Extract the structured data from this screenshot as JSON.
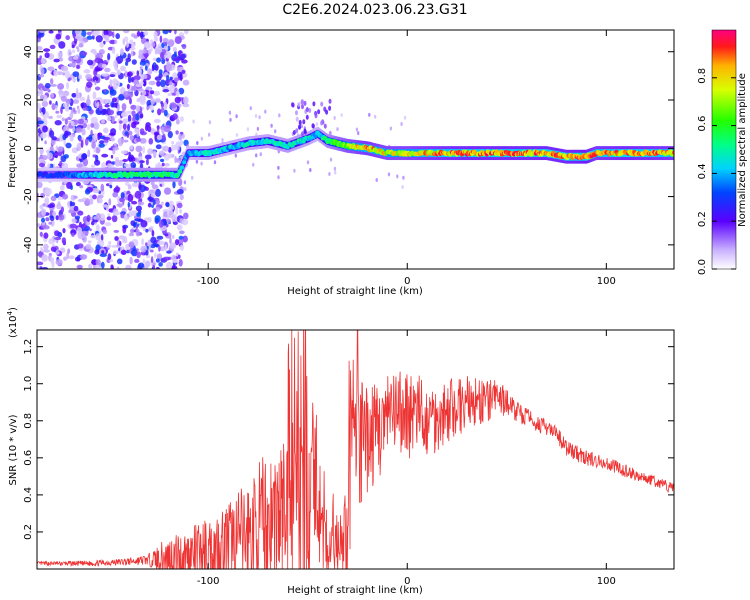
{
  "title": "C2E6.2024.023.06.23.G31",
  "chart_data": [
    {
      "type": "heatmap",
      "xlabel": "Height of straight line (km)",
      "ylabel": "Frequency (Hz)",
      "xlim": [
        -186,
        134
      ],
      "ylim": [
        -50,
        49
      ],
      "xticks": [
        -100,
        0,
        100
      ],
      "yticks": [
        -40,
        -20,
        0,
        20,
        40
      ],
      "colorbar": {
        "label": "Normalized spectral amplitude",
        "range": [
          0,
          1
        ],
        "ticks": [
          "0.0",
          "0.2",
          "0.4",
          "0.6",
          "0.8"
        ]
      },
      "ridge": {
        "x": [
          -186,
          -170,
          -150,
          -130,
          -115,
          -110,
          -100,
          -90,
          -80,
          -70,
          -60,
          -50,
          -45,
          -40,
          -30,
          -20,
          -10,
          0,
          10,
          30,
          50,
          70,
          80,
          90,
          95,
          110,
          134
        ],
        "y": [
          -11,
          -11,
          -11,
          -11,
          -11,
          -2,
          -2,
          0,
          2,
          3,
          1,
          4,
          6,
          3,
          1,
          0,
          -2,
          -2,
          -2,
          -2,
          -2,
          -2,
          -3.5,
          -3.5,
          -2,
          -2,
          -2
        ],
        "amp": [
          0.3,
          0.35,
          0.55,
          0.6,
          0.55,
          0.4,
          0.5,
          0.45,
          0.5,
          0.5,
          0.55,
          0.5,
          0.45,
          0.6,
          0.8,
          0.9,
          0.85,
          0.85,
          0.9,
          0.95,
          0.95,
          0.95,
          0.95,
          1.0,
          0.9,
          0.95,
          0.9
        ]
      }
    },
    {
      "type": "line",
      "xlabel": "Height of straight line (km)",
      "ylabel": "SNR (10 * v/v)",
      "multiplier": "(x10",
      "multiplier_exp": "4",
      "xlim": [
        -186,
        134
      ],
      "ylim": [
        0,
        12900
      ],
      "xticks": [
        -100,
        0,
        100
      ],
      "yticks": [
        2000,
        4000,
        6000,
        8000,
        10000,
        12000
      ],
      "ytick_labels": [
        "0.2",
        "0.4",
        "0.6",
        "0.8",
        "1.0",
        "1.2"
      ],
      "series": [
        {
          "color": "#ee3333",
          "x": [
            -186,
            -160,
            -140,
            -130,
            -120,
            -110,
            -100,
            -90,
            -80,
            -70,
            -60,
            -55,
            -50,
            -45,
            -40,
            -35,
            -30,
            -28,
            -25,
            -20,
            -10,
            0,
            10,
            20,
            30,
            40,
            45,
            50,
            55,
            60,
            70,
            75,
            80,
            90,
            100,
            110,
            120,
            130,
            134
          ],
          "y": [
            300,
            300,
            400,
            500,
            600,
            700,
            1000,
            1300,
            1800,
            2500,
            3000,
            3200,
            3500,
            2000,
            1000,
            900,
            1500,
            7000,
            6500,
            7000,
            8000,
            8500,
            8000,
            8500,
            9000,
            9000,
            9300,
            9000,
            8500,
            8200,
            7600,
            7300,
            6500,
            6000,
            5700,
            5300,
            4900,
            4500,
            4300
          ],
          "noise": [
            100,
            150,
            200,
            300,
            1200,
            1500,
            1800,
            2400,
            3000,
            4000,
            4500,
            5000,
            6000,
            2500,
            1500,
            1500,
            3000,
            5000,
            4000,
            3000,
            2500,
            2500,
            2200,
            1800,
            1500,
            1200,
            1000,
            800,
            600,
            500,
            400,
            400,
            500,
            400,
            400,
            350,
            300,
            300,
            300
          ]
        }
      ]
    }
  ]
}
